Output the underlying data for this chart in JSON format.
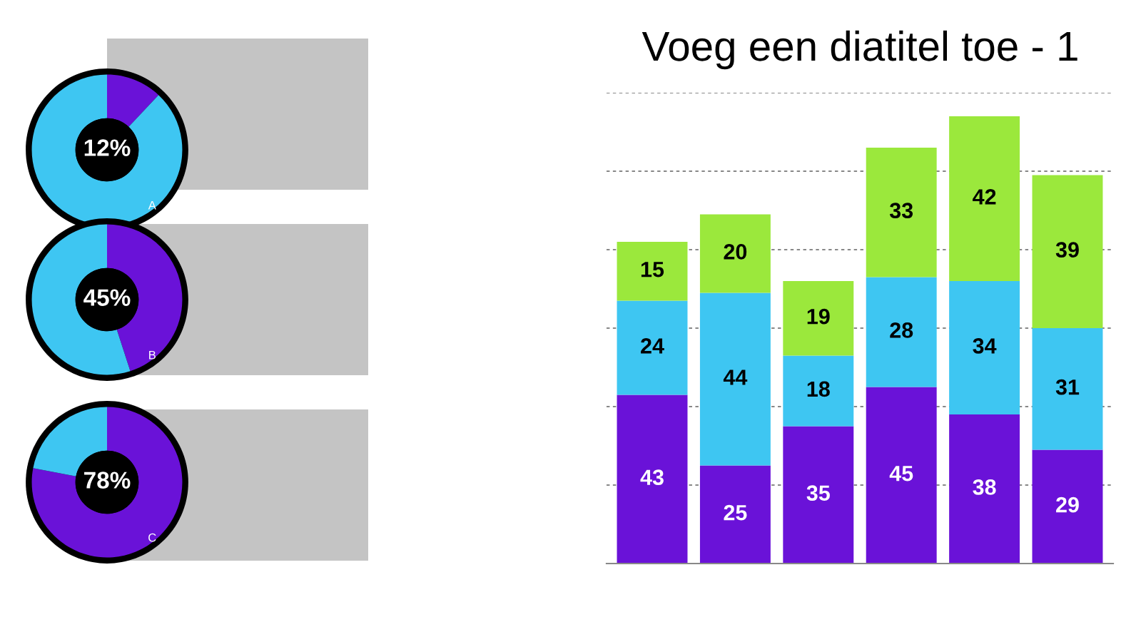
{
  "chart_data": [
    {
      "type": "donut",
      "categories": [
        null,
        null
      ],
      "values": [
        12,
        88
      ],
      "colors": [
        "#6a12d8",
        "#3ec6f2"
      ],
      "annotations": [
        "12%",
        "A"
      ]
    },
    {
      "type": "donut",
      "categories": [
        null,
        null
      ],
      "values": [
        45,
        55
      ],
      "colors": [
        "#6a12d8",
        "#3ec6f2"
      ],
      "annotations": [
        "45%",
        "B"
      ]
    },
    {
      "type": "donut",
      "categories": [
        null,
        null
      ],
      "values": [
        78,
        22
      ],
      "colors": [
        "#6a12d8",
        "#3ec6f2"
      ],
      "annotations": [
        "78%",
        "C"
      ]
    },
    {
      "type": "bar",
      "title": "Voeg een diatitel toe - 1",
      "categories": [
        null,
        null,
        null,
        null,
        null,
        null
      ],
      "stacked": true,
      "data_labels": true,
      "grid": "y",
      "legend": false,
      "ylim": [
        0,
        120
      ],
      "yticks": [
        {
          "value": 0,
          "label": null
        },
        {
          "value": 20,
          "label": null
        },
        {
          "value": 40,
          "label": null
        },
        {
          "value": 60,
          "label": null
        },
        {
          "value": 80,
          "label": null
        },
        {
          "value": 100,
          "label": null
        },
        {
          "value": 120,
          "label": null
        }
      ],
      "series": [
        {
          "color": "#6a12d8",
          "values": [
            43,
            25,
            35,
            45,
            38,
            29
          ]
        },
        {
          "color": "#3ec6f2",
          "values": [
            24,
            44,
            18,
            28,
            34,
            31
          ]
        },
        {
          "color": "#9be83c",
          "values": [
            15,
            20,
            19,
            33,
            42,
            39
          ]
        }
      ]
    }
  ]
}
